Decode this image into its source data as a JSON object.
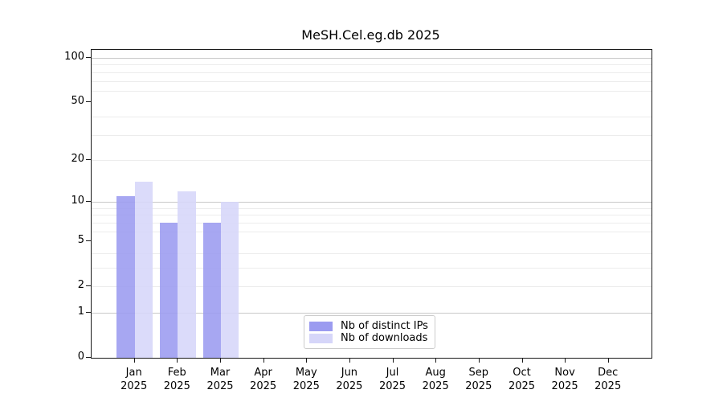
{
  "chart_data": {
    "type": "bar",
    "title": "MeSH.Cel.eg.db 2025",
    "categories": [
      "Jan 2025",
      "Feb 2025",
      "Mar 2025",
      "Apr 2025",
      "May 2025",
      "Jun 2025",
      "Jul 2025",
      "Aug 2025",
      "Sep 2025",
      "Oct 2025",
      "Nov 2025",
      "Dec 2025"
    ],
    "series": [
      {
        "name": "Nb of distinct IPs",
        "color": "#9b9bf0",
        "values": [
          11,
          7,
          7,
          0,
          0,
          0,
          0,
          0,
          0,
          0,
          0,
          0
        ]
      },
      {
        "name": "Nb of downloads",
        "color": "#d6d6f9",
        "values": [
          14,
          12,
          10,
          0,
          0,
          0,
          0,
          0,
          0,
          0,
          0,
          0
        ]
      }
    ],
    "xlabel": "",
    "ylabel": "",
    "y_scale": "log10(1+x)",
    "y_ticks": [
      0,
      1,
      2,
      5,
      10,
      20,
      50,
      100
    ],
    "y_minor_gridlines": [
      2,
      3,
      4,
      6,
      7,
      8,
      9,
      20,
      30,
      40,
      60,
      70,
      80,
      90
    ],
    "y_major_gridlines": [
      1,
      10,
      100
    ],
    "ylim": [
      0,
      112
    ],
    "grid": "horizontal",
    "legend_position": "bottom-center"
  }
}
